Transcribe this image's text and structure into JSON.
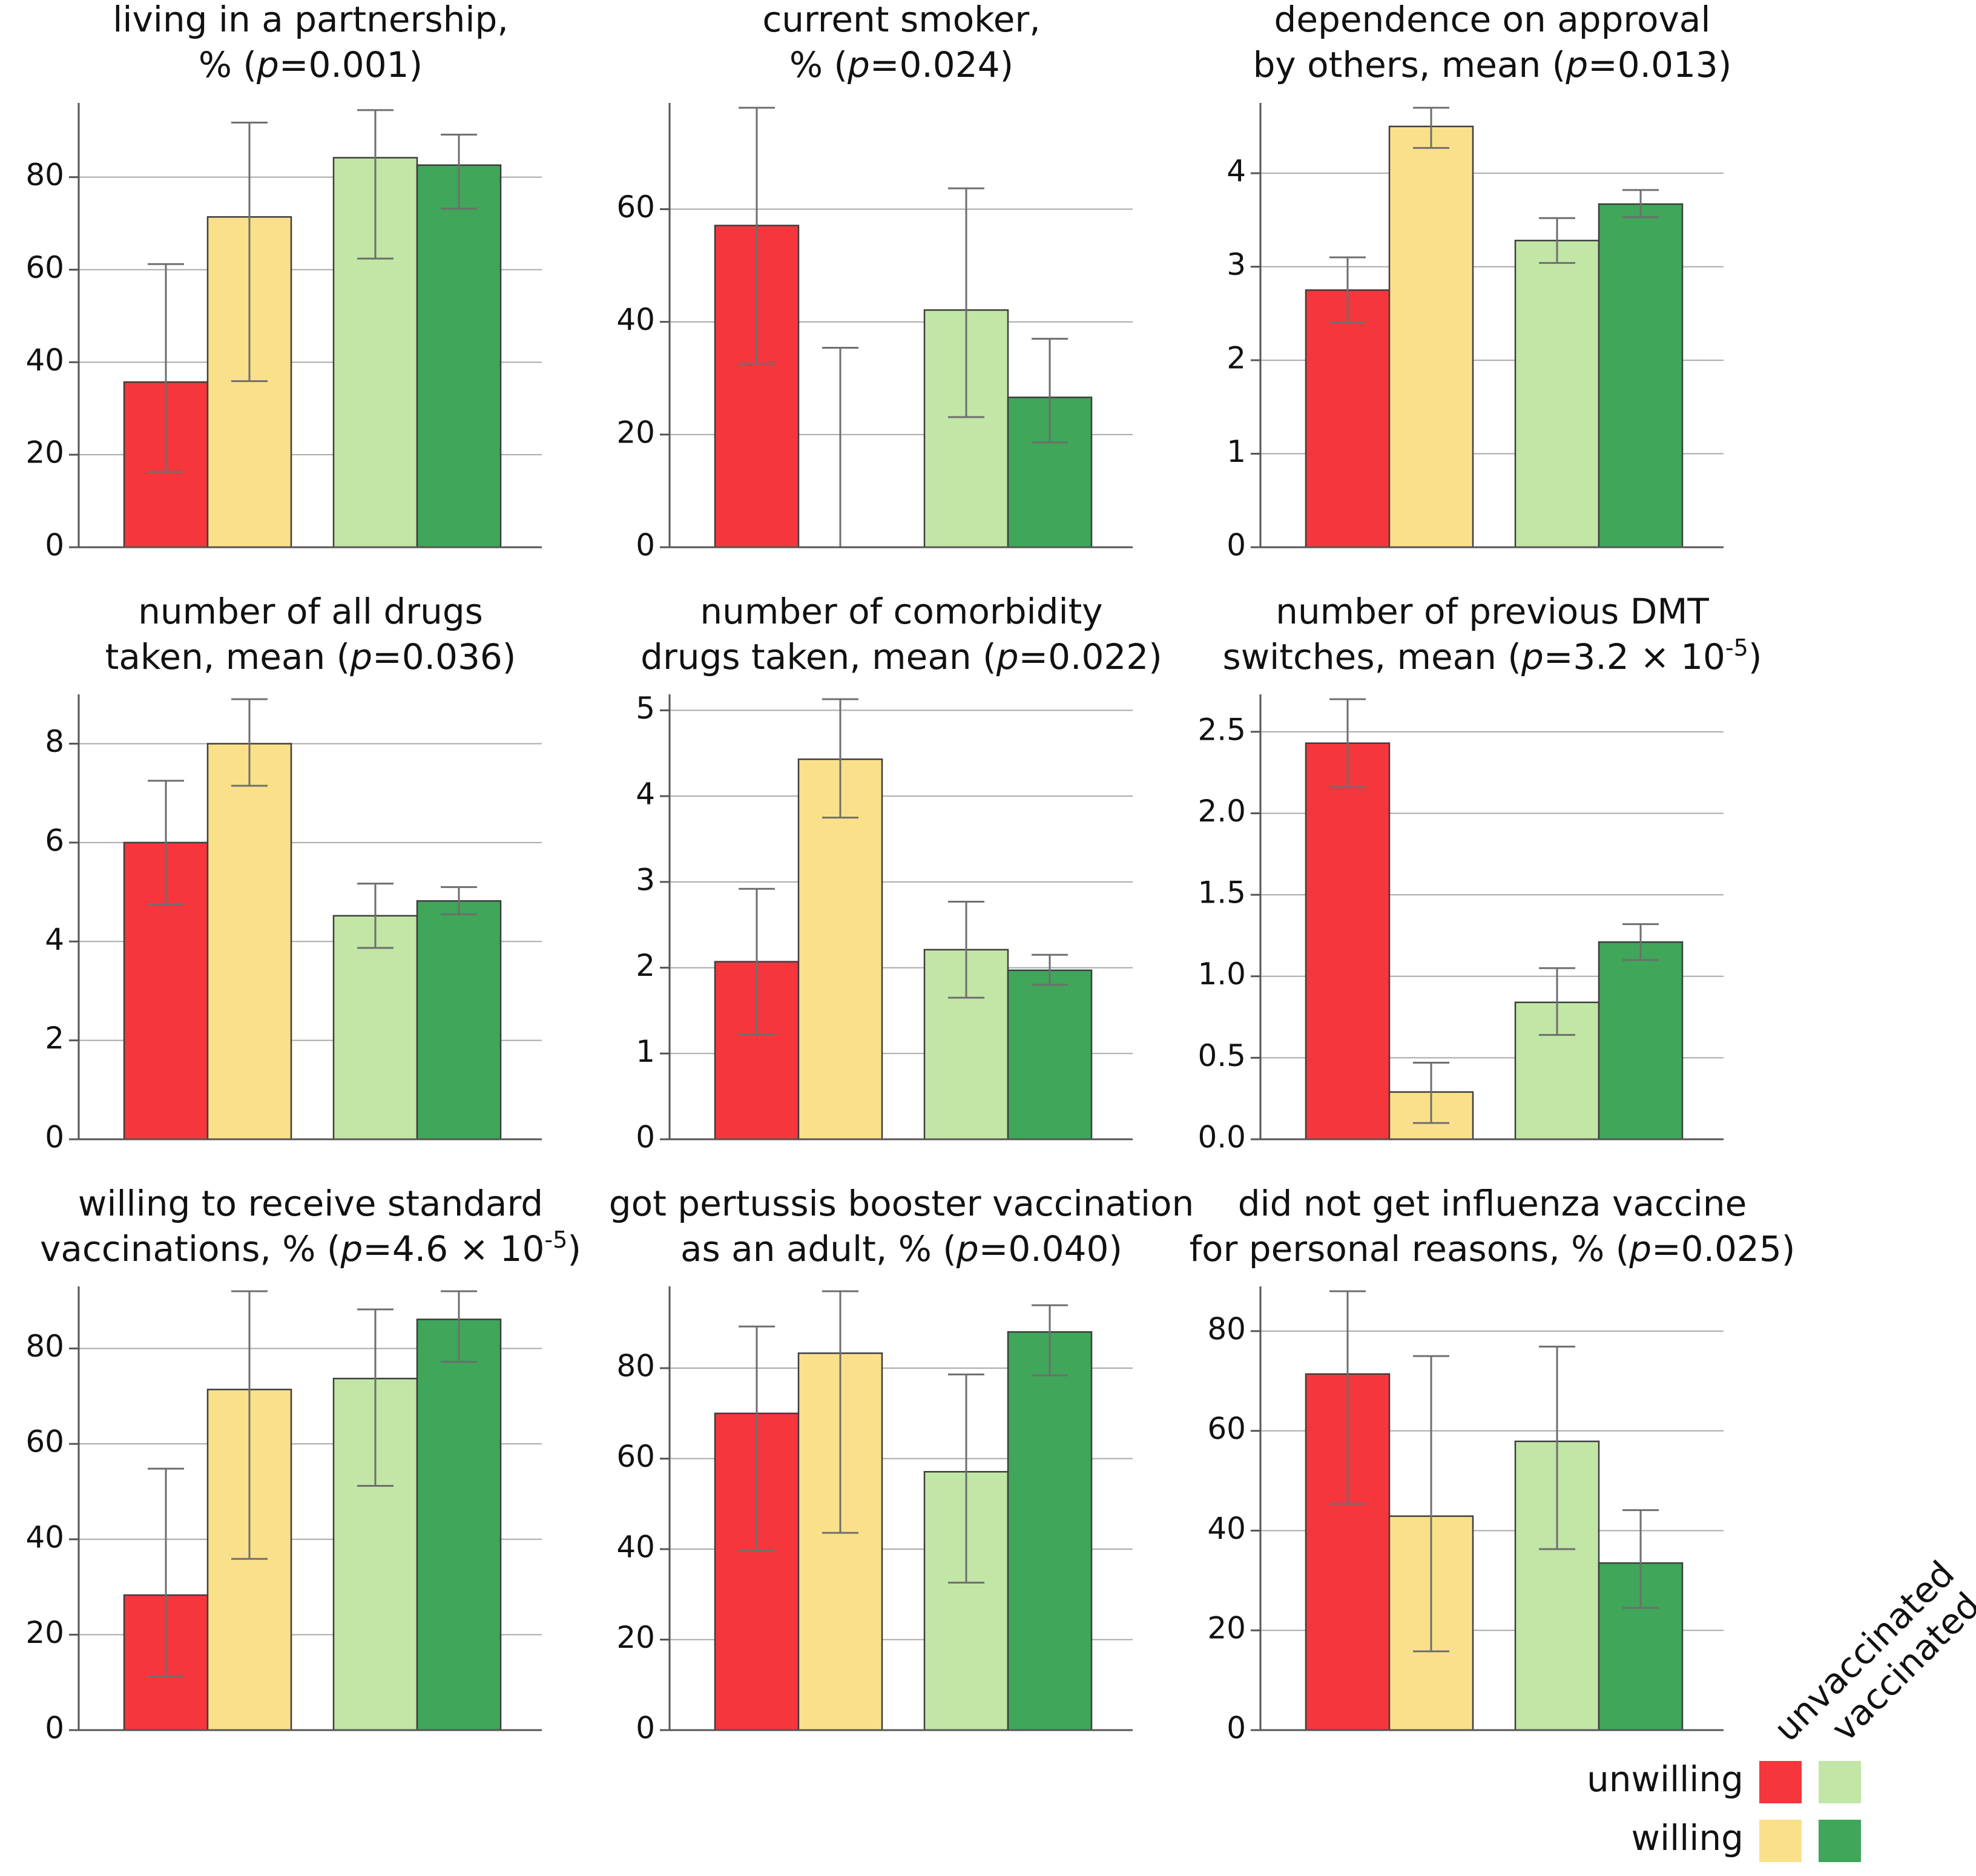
{
  "colors": {
    "unwilling_unvaccinated": "#f5363d",
    "willing_unvaccinated": "#fbe08b",
    "unwilling_vaccinated": "#c1e6a5",
    "willing_vaccinated": "#3fa65a"
  },
  "legend": {
    "column_labels": [
      "unvaccinated",
      "vaccinated"
    ],
    "row_labels": [
      "unwilling",
      "willing"
    ]
  },
  "chart_data": [
    {
      "type": "bar",
      "title_lines": [
        "living in a partnership,",
        "% (p=0.001)"
      ],
      "ylim": [
        0,
        95
      ],
      "yticks": [
        "0",
        "20",
        "40",
        "60",
        "80"
      ],
      "ytick_values": [
        0,
        20,
        40,
        60,
        80
      ],
      "groups": [
        "unvaccinated",
        "vaccinated"
      ],
      "series": [
        {
          "name": "unwilling, unvaccinated",
          "value": 35.7,
          "err_low": 16.3,
          "err_high": 61.2
        },
        {
          "name": "willing, unvaccinated",
          "value": 71.4,
          "err_low": 35.9,
          "err_high": 91.8
        },
        {
          "name": "unwilling, vaccinated",
          "value": 84.2,
          "err_low": 62.4,
          "err_high": 94.5
        },
        {
          "name": "willing, vaccinated",
          "value": 82.6,
          "err_low": 73.2,
          "err_high": 89.2
        }
      ]
    },
    {
      "type": "bar",
      "title_lines": [
        "current smoker,",
        "% (p=0.024)"
      ],
      "ylim": [
        0,
        78
      ],
      "yticks": [
        "0",
        "20",
        "40",
        "60"
      ],
      "ytick_values": [
        0,
        20,
        40,
        60
      ],
      "groups": [
        "unvaccinated",
        "vaccinated"
      ],
      "series": [
        {
          "name": "unwilling, unvaccinated",
          "value": 57.1,
          "err_low": 32.6,
          "err_high": 78
        },
        {
          "name": "willing, unvaccinated",
          "value": 0,
          "err_low": 0,
          "err_high": 35.4
        },
        {
          "name": "unwilling, vaccinated",
          "value": 42.1,
          "err_low": 23.1,
          "err_high": 63.7
        },
        {
          "name": "willing, vaccinated",
          "value": 26.6,
          "err_low": 18.6,
          "err_high": 37.0
        }
      ]
    },
    {
      "type": "bar",
      "title_lines": [
        "dependence on approval",
        "by others, mean (p=0.013)"
      ],
      "ylim": [
        0,
        4.7
      ],
      "yticks": [
        "0",
        "1",
        "2",
        "3",
        "4"
      ],
      "ytick_values": [
        0,
        1,
        2,
        3,
        4
      ],
      "groups": [
        "unvaccinated",
        "vaccinated"
      ],
      "series": [
        {
          "name": "unwilling, unvaccinated",
          "value": 2.75,
          "err_low": 2.4,
          "err_high": 3.1
        },
        {
          "name": "willing, unvaccinated",
          "value": 4.5,
          "err_low": 4.27,
          "err_high": 4.7
        },
        {
          "name": "unwilling, vaccinated",
          "value": 3.28,
          "err_low": 3.04,
          "err_high": 3.52
        },
        {
          "name": "willing, vaccinated",
          "value": 3.67,
          "err_low": 3.53,
          "err_high": 3.82
        }
      ]
    },
    {
      "type": "bar",
      "title_lines": [
        "number of all drugs",
        "taken, mean (p=0.036)"
      ],
      "ylim": [
        0,
        8.9
      ],
      "yticks": [
        "0",
        "2",
        "4",
        "6",
        "8"
      ],
      "ytick_values": [
        0,
        2,
        4,
        6,
        8
      ],
      "groups": [
        "unvaccinated",
        "vaccinated"
      ],
      "series": [
        {
          "name": "unwilling, unvaccinated",
          "value": 6.0,
          "err_low": 4.75,
          "err_high": 7.25
        },
        {
          "name": "willing, unvaccinated",
          "value": 8.0,
          "err_low": 7.15,
          "err_high": 8.9
        },
        {
          "name": "unwilling, vaccinated",
          "value": 4.52,
          "err_low": 3.87,
          "err_high": 5.17
        },
        {
          "name": "willing, vaccinated",
          "value": 4.82,
          "err_low": 4.55,
          "err_high": 5.1
        }
      ]
    },
    {
      "type": "bar",
      "title_lines": [
        "number of comorbidity",
        "drugs taken, mean (p=0.022)"
      ],
      "ylim": [
        0,
        5.13
      ],
      "yticks": [
        "0",
        "1",
        "2",
        "3",
        "4",
        "5"
      ],
      "ytick_values": [
        0,
        1,
        2,
        3,
        4,
        5
      ],
      "groups": [
        "unvaccinated",
        "vaccinated"
      ],
      "series": [
        {
          "name": "unwilling, unvaccinated",
          "value": 2.07,
          "err_low": 1.22,
          "err_high": 2.92
        },
        {
          "name": "willing, unvaccinated",
          "value": 4.43,
          "err_low": 3.75,
          "err_high": 5.13
        },
        {
          "name": "unwilling, vaccinated",
          "value": 2.21,
          "err_low": 1.65,
          "err_high": 2.77
        },
        {
          "name": "willing, vaccinated",
          "value": 1.97,
          "err_low": 1.8,
          "err_high": 2.15
        }
      ]
    },
    {
      "type": "bar",
      "title_lines": [
        "number of previous DMT",
        "switches, mean (p=3.2 × 10-5)"
      ],
      "ylim": [
        0,
        2.7
      ],
      "yticks": [
        "0.0",
        "0.5",
        "1.0",
        "1.5",
        "2.0",
        "2.5"
      ],
      "ytick_values": [
        0,
        0.5,
        1.0,
        1.5,
        2.0,
        2.5
      ],
      "groups": [
        "unvaccinated",
        "vaccinated"
      ],
      "series": [
        {
          "name": "unwilling, unvaccinated",
          "value": 2.43,
          "err_low": 2.16,
          "err_high": 2.7
        },
        {
          "name": "willing, unvaccinated",
          "value": 0.29,
          "err_low": 0.1,
          "err_high": 0.47
        },
        {
          "name": "unwilling, vaccinated",
          "value": 0.84,
          "err_low": 0.64,
          "err_high": 1.05
        },
        {
          "name": "willing, vaccinated",
          "value": 1.21,
          "err_low": 1.1,
          "err_high": 1.32
        }
      ]
    },
    {
      "type": "bar",
      "title_lines": [
        "willing to receive standard",
        "vaccinations, % (p=4.6 × 10-5)"
      ],
      "ylim": [
        0,
        92
      ],
      "yticks": [
        "0",
        "20",
        "40",
        "60",
        "80"
      ],
      "ytick_values": [
        0,
        20,
        40,
        60,
        80
      ],
      "groups": [
        "unvaccinated",
        "vaccinated"
      ],
      "series": [
        {
          "name": "unwilling, unvaccinated",
          "value": 28.3,
          "err_low": 11.3,
          "err_high": 54.8
        },
        {
          "name": "willing, unvaccinated",
          "value": 71.4,
          "err_low": 35.9,
          "err_high": 92
        },
        {
          "name": "unwilling, vaccinated",
          "value": 73.7,
          "err_low": 51.2,
          "err_high": 88.2
        },
        {
          "name": "willing, vaccinated",
          "value": 86.1,
          "err_low": 77.2,
          "err_high": 92
        }
      ]
    },
    {
      "type": "bar",
      "title_lines": [
        "got pertussis booster vaccination",
        "as an adult, % (p=0.040)"
      ],
      "ylim": [
        0,
        97
      ],
      "yticks": [
        "0",
        "20",
        "40",
        "60",
        "80"
      ],
      "ytick_values": [
        0,
        20,
        40,
        60,
        80
      ],
      "groups": [
        "unvaccinated",
        "vaccinated"
      ],
      "series": [
        {
          "name": "unwilling, unvaccinated",
          "value": 70.0,
          "err_low": 39.7,
          "err_high": 89.2
        },
        {
          "name": "willing, unvaccinated",
          "value": 83.3,
          "err_low": 43.6,
          "err_high": 97
        },
        {
          "name": "unwilling, vaccinated",
          "value": 57.1,
          "err_low": 32.6,
          "err_high": 78.6
        },
        {
          "name": "willing, vaccinated",
          "value": 88.0,
          "err_low": 78.4,
          "err_high": 93.9
        }
      ]
    },
    {
      "type": "bar",
      "title_lines": [
        "did not get influenza vaccine",
        "for personal reasons, % (p=0.025)"
      ],
      "ylim": [
        0,
        88
      ],
      "yticks": [
        "0",
        "20",
        "40",
        "60",
        "80"
      ],
      "ytick_values": [
        0,
        20,
        40,
        60,
        80
      ],
      "groups": [
        "unvaccinated",
        "vaccinated"
      ],
      "series": [
        {
          "name": "unwilling, unvaccinated",
          "value": 71.4,
          "err_low": 45.4,
          "err_high": 88
        },
        {
          "name": "willing, unvaccinated",
          "value": 42.9,
          "err_low": 15.8,
          "err_high": 75.0
        },
        {
          "name": "unwilling, vaccinated",
          "value": 57.9,
          "err_low": 36.3,
          "err_high": 76.9
        },
        {
          "name": "willing, vaccinated",
          "value": 33.5,
          "err_low": 24.5,
          "err_high": 44.1
        }
      ]
    }
  ]
}
